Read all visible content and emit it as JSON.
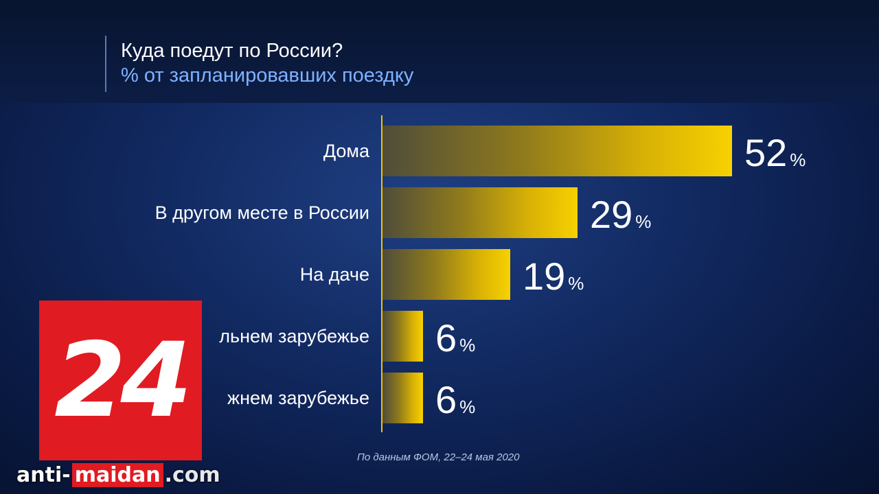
{
  "chart_data": {
    "type": "bar",
    "orientation": "horizontal",
    "title": "Куда поедут по России?",
    "subtitle": "% от запланировавших поездку",
    "categories": [
      "Дома",
      "В другом месте в России",
      "На даче",
      "В дальнем зарубежье",
      "В ближнем зарубежье"
    ],
    "category_labels_visible": [
      "Дома",
      "В другом месте в России",
      "На даче",
      "льнем зарубежье",
      "жнем зарубежье"
    ],
    "values": [
      52,
      29,
      19,
      6,
      6
    ],
    "unit": "%",
    "xlim": [
      0,
      52
    ],
    "grid": false,
    "legend": "none",
    "bar_color": "#f7d100"
  },
  "source": "По данным ФОМ, 22–24 мая 2020",
  "logo": {
    "text": "24",
    "color": "#e11b22",
    "icon": "channel-24-logo"
  },
  "watermark": {
    "part1": "anti-",
    "part2": "maidan",
    "part3": ".com"
  }
}
